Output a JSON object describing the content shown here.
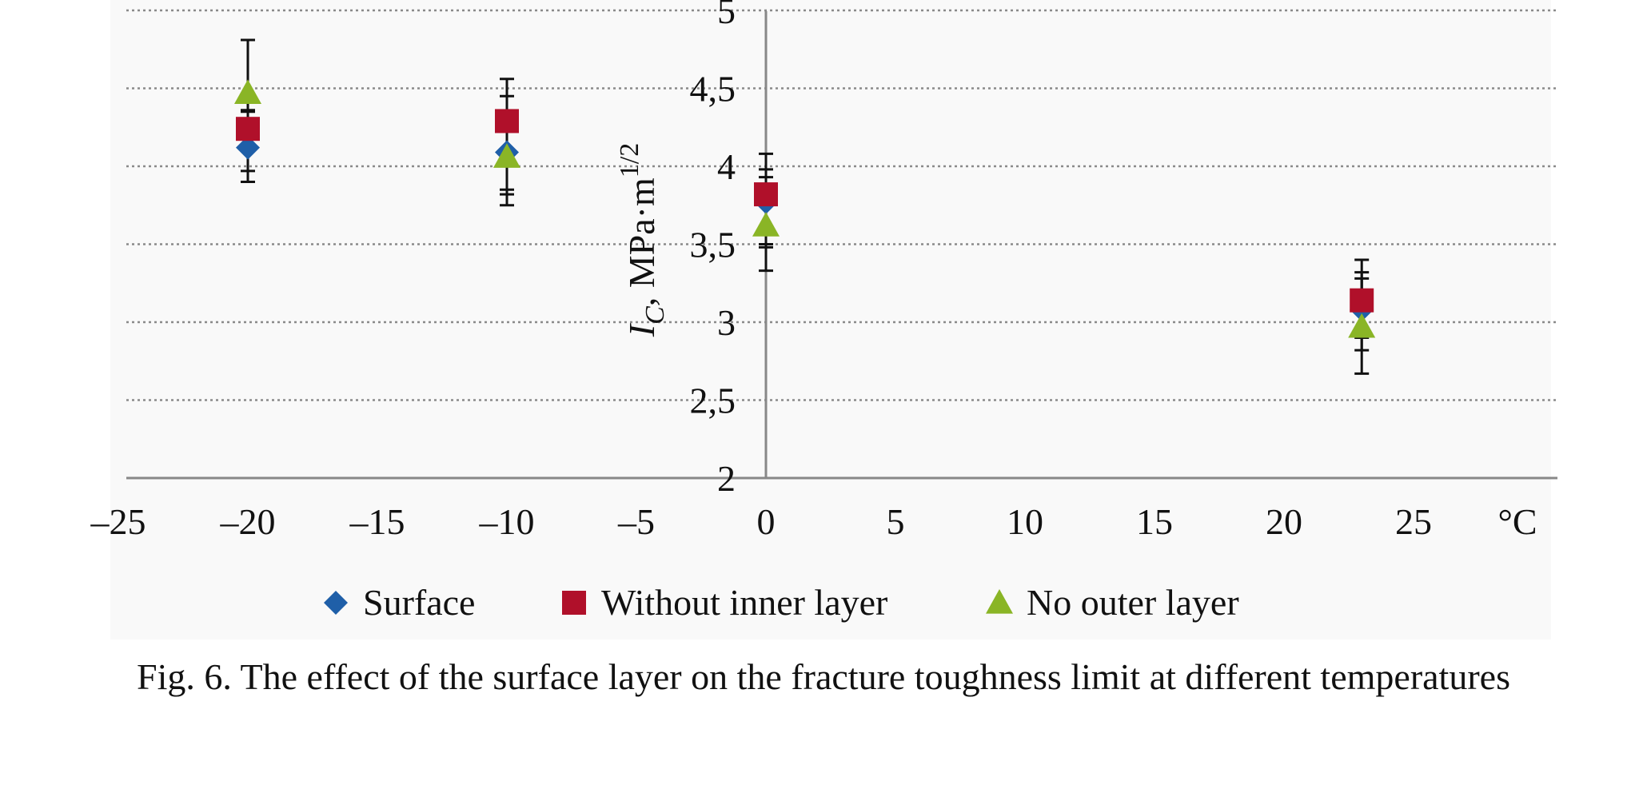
{
  "chart_data": {
    "type": "scatter",
    "x": [
      -20,
      -10,
      0,
      23
    ],
    "xlim": [
      -25,
      30
    ],
    "ylim": [
      2,
      5
    ],
    "x_ticks": [
      "–25",
      "–20",
      "–15",
      "–10",
      "–5",
      "0",
      "5",
      "10",
      "15",
      "20",
      "25"
    ],
    "x_unit": "°C",
    "y_ticks": [
      "2",
      "2,5",
      "3",
      "3,5",
      "4",
      "4,5",
      "5"
    ],
    "ylabel_main": "I",
    "ylabel_sub": "C",
    "ylabel_rest": ", MPa·m",
    "ylabel_sup": "1/2",
    "grid": true,
    "legend_position": "bottom",
    "series": [
      {
        "name": "Surface",
        "marker": "diamond",
        "color": "#1f5fa8",
        "values": [
          4.12,
          4.09,
          3.77,
          3.08
        ],
        "err_low": [
          3.9,
          3.75,
          3.33,
          2.67
        ],
        "err_high": [
          4.35,
          4.45,
          3.98,
          3.32
        ]
      },
      {
        "name": "Without inner layer",
        "marker": "square",
        "color": "#b0102a",
        "values": [
          4.24,
          4.29,
          3.82,
          3.14
        ],
        "err_low": [
          3.97,
          3.85,
          3.48,
          2.9
        ],
        "err_high": [
          4.36,
          4.56,
          4.08,
          3.4
        ]
      },
      {
        "name": "No outer layer",
        "marker": "triangle",
        "color": "#8ab526",
        "values": [
          4.47,
          4.06,
          3.62,
          2.97
        ],
        "err_low": [
          4.13,
          3.82,
          3.5,
          2.82
        ],
        "err_high": [
          4.81,
          4.3,
          3.93,
          3.28
        ]
      }
    ]
  },
  "caption": "Fig. 6. The effect of the surface layer on the fracture toughness limit at different temperatures"
}
